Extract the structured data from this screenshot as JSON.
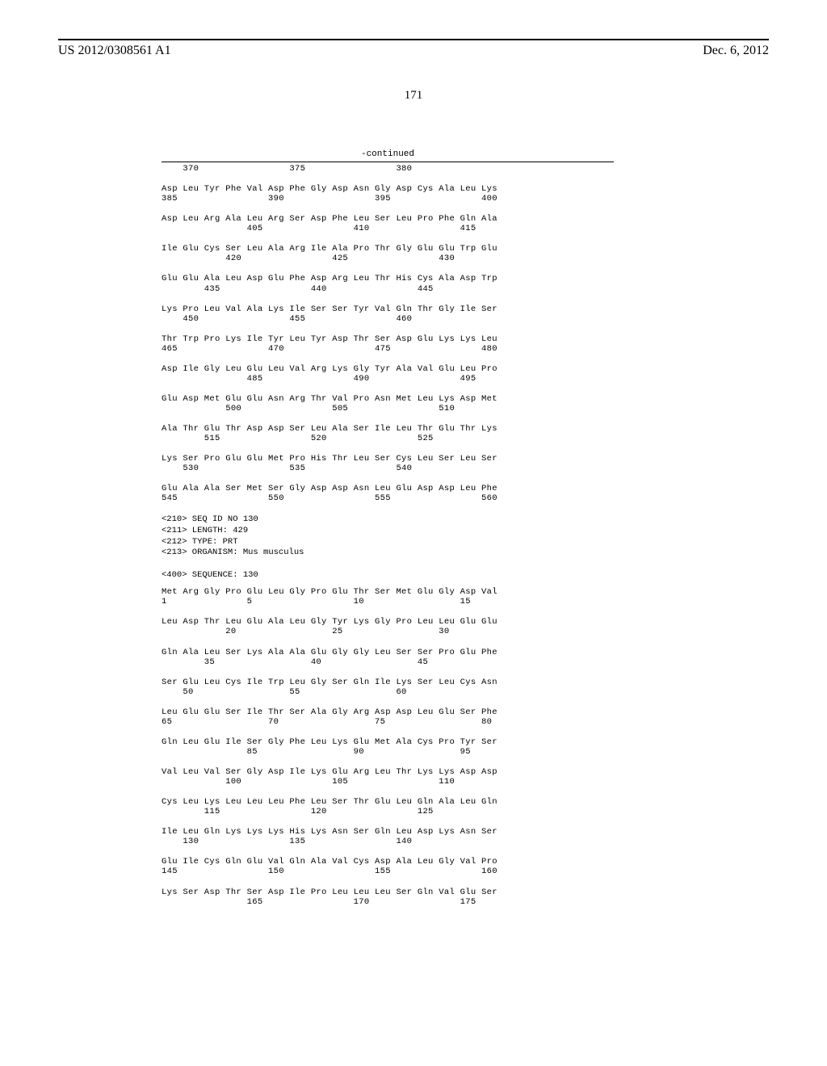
{
  "header": {
    "patent_number": "US 2012/0308561 A1",
    "date": "Dec. 6, 2012"
  },
  "page_number": "171",
  "continued_label": "-continued",
  "sequence_data_1": {
    "rows": [
      {
        "positions": "    370                 375                 380"
      },
      {
        "amino": "Asp Leu Tyr Phe Val Asp Phe Gly Asp Asn Gly Asp Cys Ala Leu Lys",
        "nums": "385                 390                 395                 400"
      },
      {
        "amino": "Asp Leu Arg Ala Leu Arg Ser Asp Phe Leu Ser Leu Pro Phe Gln Ala",
        "nums": "                405                 410                 415"
      },
      {
        "amino": "Ile Glu Cys Ser Leu Ala Arg Ile Ala Pro Thr Gly Glu Glu Trp Glu",
        "nums": "            420                 425                 430"
      },
      {
        "amino": "Glu Glu Ala Leu Asp Glu Phe Asp Arg Leu Thr His Cys Ala Asp Trp",
        "nums": "        435                 440                 445"
      },
      {
        "amino": "Lys Pro Leu Val Ala Lys Ile Ser Ser Tyr Val Gln Thr Gly Ile Ser",
        "nums": "    450                 455                 460"
      },
      {
        "amino": "Thr Trp Pro Lys Ile Tyr Leu Tyr Asp Thr Ser Asp Glu Lys Lys Leu",
        "nums": "465                 470                 475                 480"
      },
      {
        "amino": "Asp Ile Gly Leu Glu Leu Val Arg Lys Gly Tyr Ala Val Glu Leu Pro",
        "nums": "                485                 490                 495"
      },
      {
        "amino": "Glu Asp Met Glu Glu Asn Arg Thr Val Pro Asn Met Leu Lys Asp Met",
        "nums": "            500                 505                 510"
      },
      {
        "amino": "Ala Thr Glu Thr Asp Asp Ser Leu Ala Ser Ile Leu Thr Glu Thr Lys",
        "nums": "        515                 520                 525"
      },
      {
        "amino": "Lys Ser Pro Glu Glu Met Pro His Thr Leu Ser Cys Leu Ser Leu Ser",
        "nums": "    530                 535                 540"
      },
      {
        "amino": "Glu Ala Ala Ser Met Ser Gly Asp Asp Asn Leu Glu Asp Asp Leu Phe",
        "nums": "545                 550                 555                 560"
      }
    ]
  },
  "seq_header": {
    "line1": "<210> SEQ ID NO 130",
    "line2": "<211> LENGTH: 429",
    "line3": "<212> TYPE: PRT",
    "line4": "<213> ORGANISM: Mus musculus",
    "line5": "<400> SEQUENCE: 130"
  },
  "sequence_data_2": {
    "rows": [
      {
        "amino": "Met Arg Gly Pro Glu Leu Gly Pro Glu Thr Ser Met Glu Gly Asp Val",
        "nums": "1               5                   10                  15"
      },
      {
        "amino": "Leu Asp Thr Leu Glu Ala Leu Gly Tyr Lys Gly Pro Leu Leu Glu Glu",
        "nums": "            20                  25                  30"
      },
      {
        "amino": "Gln Ala Leu Ser Lys Ala Ala Glu Gly Gly Leu Ser Ser Pro Glu Phe",
        "nums": "        35                  40                  45"
      },
      {
        "amino": "Ser Glu Leu Cys Ile Trp Leu Gly Ser Gln Ile Lys Ser Leu Cys Asn",
        "nums": "    50                  55                  60"
      },
      {
        "amino": "Leu Glu Glu Ser Ile Thr Ser Ala Gly Arg Asp Asp Leu Glu Ser Phe",
        "nums": "65                  70                  75                  80"
      },
      {
        "amino": "Gln Leu Glu Ile Ser Gly Phe Leu Lys Glu Met Ala Cys Pro Tyr Ser",
        "nums": "                85                  90                  95"
      },
      {
        "amino": "Val Leu Val Ser Gly Asp Ile Lys Glu Arg Leu Thr Lys Lys Asp Asp",
        "nums": "            100                 105                 110"
      },
      {
        "amino": "Cys Leu Lys Leu Leu Leu Phe Leu Ser Thr Glu Leu Gln Ala Leu Gln",
        "nums": "        115                 120                 125"
      },
      {
        "amino": "Ile Leu Gln Lys Lys Lys His Lys Asn Ser Gln Leu Asp Lys Asn Ser",
        "nums": "    130                 135                 140"
      },
      {
        "amino": "Glu Ile Cys Gln Glu Val Gln Ala Val Cys Asp Ala Leu Gly Val Pro",
        "nums": "145                 150                 155                 160"
      },
      {
        "amino": "Lys Ser Asp Thr Ser Asp Ile Pro Leu Leu Leu Ser Gln Val Glu Ser",
        "nums": "                165                 170                 175"
      }
    ]
  }
}
